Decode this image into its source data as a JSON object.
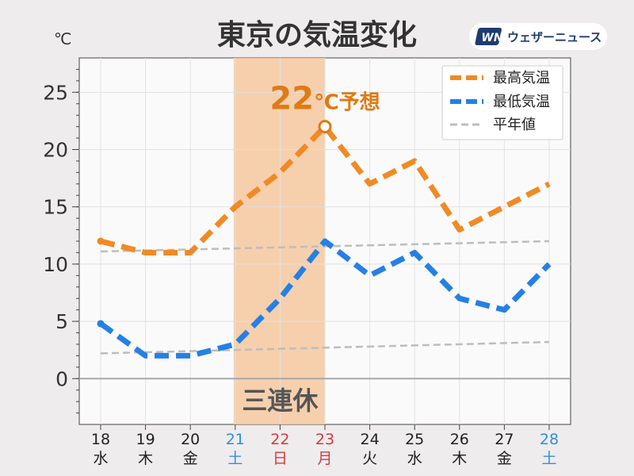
{
  "title": "東京の気温変化",
  "unit_label": "℃",
  "brand": {
    "logo_text": "WN",
    "name": "ウェザーニュース"
  },
  "colors": {
    "high": "#f08a24",
    "low": "#2480e6",
    "normal": "#bdbdbd",
    "holiday_band": "#f5c79f",
    "weekday": "#222222",
    "saturday": "#2f8fe0",
    "sunday_holiday": "#d9383a",
    "annotation": "#e07a14"
  },
  "annotation": {
    "value_text": "22",
    "unit_text": "℃",
    "suffix_text": "予想"
  },
  "holiday_label": "三連休",
  "chart_data": {
    "type": "line",
    "title": "東京の気温変化",
    "ylabel": "℃",
    "ylim": [
      -4,
      28
    ],
    "yticks": [
      0,
      5,
      10,
      15,
      20,
      25
    ],
    "grid": true,
    "legend_position": "top-right",
    "dates": [
      "18",
      "19",
      "20",
      "21",
      "22",
      "23",
      "24",
      "25",
      "26",
      "27",
      "28"
    ],
    "weekdays": [
      "水",
      "木",
      "金",
      "土",
      "日",
      "月",
      "火",
      "水",
      "木",
      "金",
      "土"
    ],
    "day_kind": [
      "weekday",
      "weekday",
      "weekday",
      "saturday",
      "holiday",
      "holiday",
      "weekday",
      "weekday",
      "weekday",
      "weekday",
      "saturday"
    ],
    "highlight_range": [
      "21",
      "23"
    ],
    "series": [
      {
        "name": "最高気温",
        "values": [
          12,
          11,
          11,
          15,
          18,
          22,
          17,
          19,
          13,
          15,
          17
        ]
      },
      {
        "name": "最低気温",
        "values": [
          4.8,
          2,
          2,
          3,
          7,
          12,
          9,
          11,
          7,
          6,
          10
        ]
      },
      {
        "name": "平年値",
        "values_start": [
          11.1,
          2.2
        ],
        "values_end": [
          12.0,
          3.2
        ]
      }
    ]
  }
}
